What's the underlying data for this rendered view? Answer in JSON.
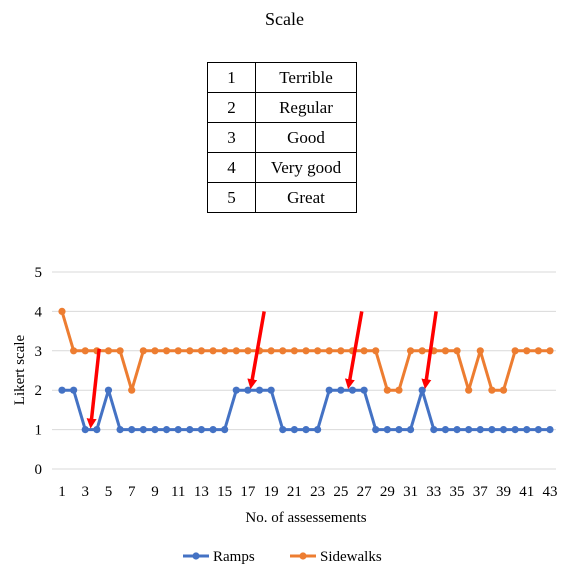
{
  "scale_table": {
    "title": "Scale",
    "rows": [
      {
        "num": "1",
        "label": "Terrible"
      },
      {
        "num": "2",
        "label": "Regular"
      },
      {
        "num": "3",
        "label": "Good"
      },
      {
        "num": "4",
        "label": "Very good"
      },
      {
        "num": "5",
        "label": "Great"
      }
    ]
  },
  "chart_data": {
    "type": "line",
    "xlabel": "No. of assessements",
    "ylabel": "Likert scale",
    "ylim": [
      0,
      5
    ],
    "yticks": [
      0,
      1,
      2,
      3,
      4,
      5
    ],
    "x": [
      1,
      2,
      3,
      4,
      5,
      6,
      7,
      8,
      9,
      10,
      11,
      12,
      13,
      14,
      15,
      16,
      17,
      18,
      19,
      20,
      21,
      22,
      23,
      24,
      25,
      26,
      27,
      28,
      29,
      30,
      31,
      32,
      33,
      34,
      35,
      36,
      37,
      38,
      39,
      40,
      41,
      42,
      43
    ],
    "xticks": [
      1,
      3,
      5,
      7,
      9,
      11,
      13,
      15,
      17,
      19,
      21,
      23,
      25,
      27,
      29,
      31,
      33,
      35,
      37,
      39,
      41,
      43
    ],
    "grid": "horizontal",
    "legend_position": "bottom",
    "series": [
      {
        "name": "Ramps",
        "color": "#4472c4",
        "values": [
          2,
          2,
          1,
          1,
          2,
          1,
          1,
          1,
          1,
          1,
          1,
          1,
          1,
          1,
          1,
          2,
          2,
          2,
          2,
          1,
          1,
          1,
          1,
          2,
          2,
          2,
          2,
          1,
          1,
          1,
          1,
          2,
          1,
          1,
          1,
          1,
          1,
          1,
          1,
          1,
          1,
          1,
          1
        ]
      },
      {
        "name": "Sidewalks",
        "color": "#ed7d31",
        "values": [
          4,
          3,
          3,
          3,
          3,
          3,
          2,
          3,
          3,
          3,
          3,
          3,
          3,
          3,
          3,
          3,
          3,
          3,
          3,
          3,
          3,
          3,
          3,
          3,
          3,
          3,
          3,
          3,
          2,
          2,
          3,
          3,
          3,
          3,
          3,
          2,
          3,
          2,
          2,
          3,
          3,
          3,
          3
        ]
      }
    ],
    "annotations": [
      {
        "type": "arrow",
        "color": "#ff0000",
        "from": [
          4.2,
          3.05
        ],
        "to": [
          3.5,
          1.0
        ]
      },
      {
        "type": "arrow",
        "color": "#ff0000",
        "from": [
          18.4,
          4.0
        ],
        "to": [
          17.3,
          2.0
        ]
      },
      {
        "type": "arrow",
        "color": "#ff0000",
        "from": [
          26.8,
          4.0
        ],
        "to": [
          25.7,
          2.0
        ]
      },
      {
        "type": "arrow",
        "color": "#ff0000",
        "from": [
          33.2,
          4.0
        ],
        "to": [
          32.3,
          2.0
        ]
      }
    ]
  }
}
